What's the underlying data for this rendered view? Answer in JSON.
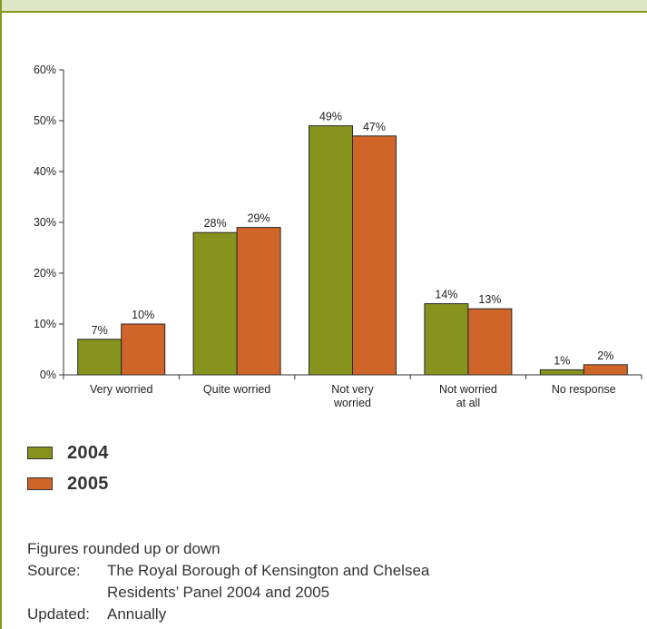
{
  "chart_data": {
    "type": "bar",
    "categories": [
      [
        "Very worried"
      ],
      [
        "Quite worried"
      ],
      [
        "Not very",
        "worried"
      ],
      [
        "Not worried",
        "at all"
      ],
      [
        "No response"
      ]
    ],
    "series": [
      {
        "name": "2004",
        "values": [
          7,
          28,
          49,
          14,
          1
        ],
        "color": "#86931d"
      },
      {
        "name": "2005",
        "values": [
          10,
          29,
          47,
          13,
          2
        ],
        "color": "#cf6528"
      }
    ],
    "value_labels": [
      [
        "7%",
        "28%",
        "49%",
        "14%",
        "1%"
      ],
      [
        "10%",
        "29%",
        "47%",
        "13%",
        "2%"
      ]
    ],
    "ylim": [
      0,
      60
    ],
    "yticks": [
      0,
      10,
      20,
      30,
      40,
      50,
      60
    ],
    "ytick_labels": [
      "0%",
      "10%",
      "20%",
      "30%",
      "40%",
      "50%",
      "60%"
    ],
    "grid": false,
    "legend_position": "bottom-left"
  },
  "legend": [
    {
      "label": "2004",
      "color": "#86931d"
    },
    {
      "label": "2005",
      "color": "#cf6528"
    }
  ],
  "notes": {
    "rounding": "Figures rounded up or down",
    "source_key": "Source:",
    "source_line1": "The Royal Borough of Kensington and Chelsea",
    "source_line2": "Residents’ Panel 2004 and 2005",
    "updated_key": "Updated:",
    "updated_value": "Annually"
  },
  "colors": {
    "accent": "#7f9a1f",
    "header_band": "#dfe7c6"
  }
}
